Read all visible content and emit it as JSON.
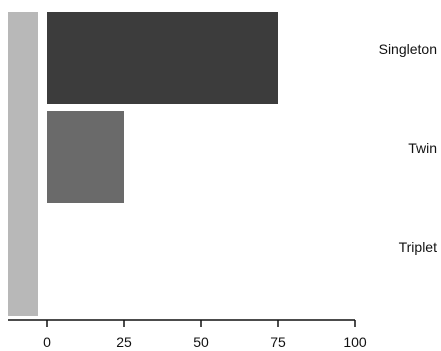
{
  "chart_data": {
    "type": "bar",
    "orientation": "horizontal",
    "categories": [
      "Singleton",
      "Twin",
      "Triplet"
    ],
    "values": [
      75,
      25,
      0
    ],
    "xlim": [
      0,
      100
    ],
    "xticks": [
      0,
      25,
      50,
      75,
      100
    ],
    "title": "",
    "xlabel": "",
    "ylabel": "",
    "grid": false,
    "legend": "none",
    "colors": {
      "bars": [
        "#3c3c3c",
        "#6a6a6a",
        "#9a9a9a"
      ],
      "side_band": "#b8b8b8",
      "axis": "#111111"
    }
  }
}
